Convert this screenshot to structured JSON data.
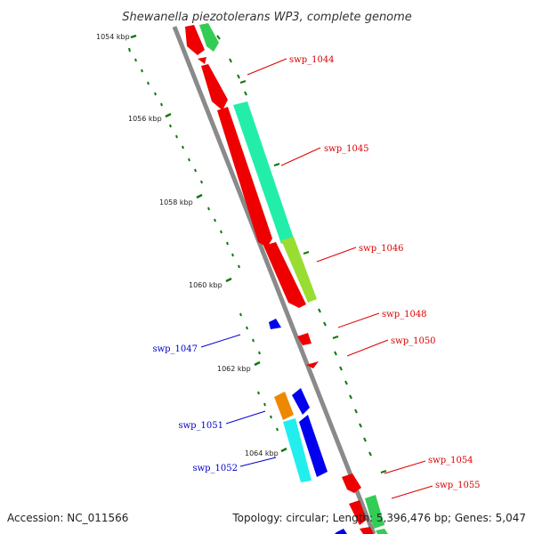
{
  "title": "Shewanella piezotolerans WP3, complete genome",
  "footer": {
    "accession": "Accession: NC_011566",
    "summary": "Topology: circular; Length: 5,396,476 bp; Genes: 5,047"
  },
  "scale_labels": [
    "1054 kbp",
    "1056 kbp",
    "1058 kbp",
    "1060 kbp",
    "1062 kbp",
    "1064 kbp"
  ],
  "gene_labels": {
    "swp_1044": "swp_1044",
    "swp_1045": "swp_1045",
    "swp_1046": "swp_1046",
    "swp_1047": "swp_1047",
    "swp_1048": "swp_1048",
    "swp_1050": "swp_1050",
    "swp_1051": "swp_1051",
    "swp_1052": "swp_1052",
    "swp_1054": "swp_1054",
    "swp_1055": "swp_1055"
  },
  "colors": {
    "forward_label": "#dd0000",
    "reverse_label": "#0000cc",
    "red_gene": "#ee0000",
    "green_gene": "#33cc55",
    "teal_gene": "#22eeaa",
    "lime_gene": "#99dd33",
    "blue_gene": "#0000ee",
    "orange_gene": "#ee8800",
    "cyan_gene": "#22eeee",
    "backbone": "#888888",
    "tick": "#117711"
  }
}
